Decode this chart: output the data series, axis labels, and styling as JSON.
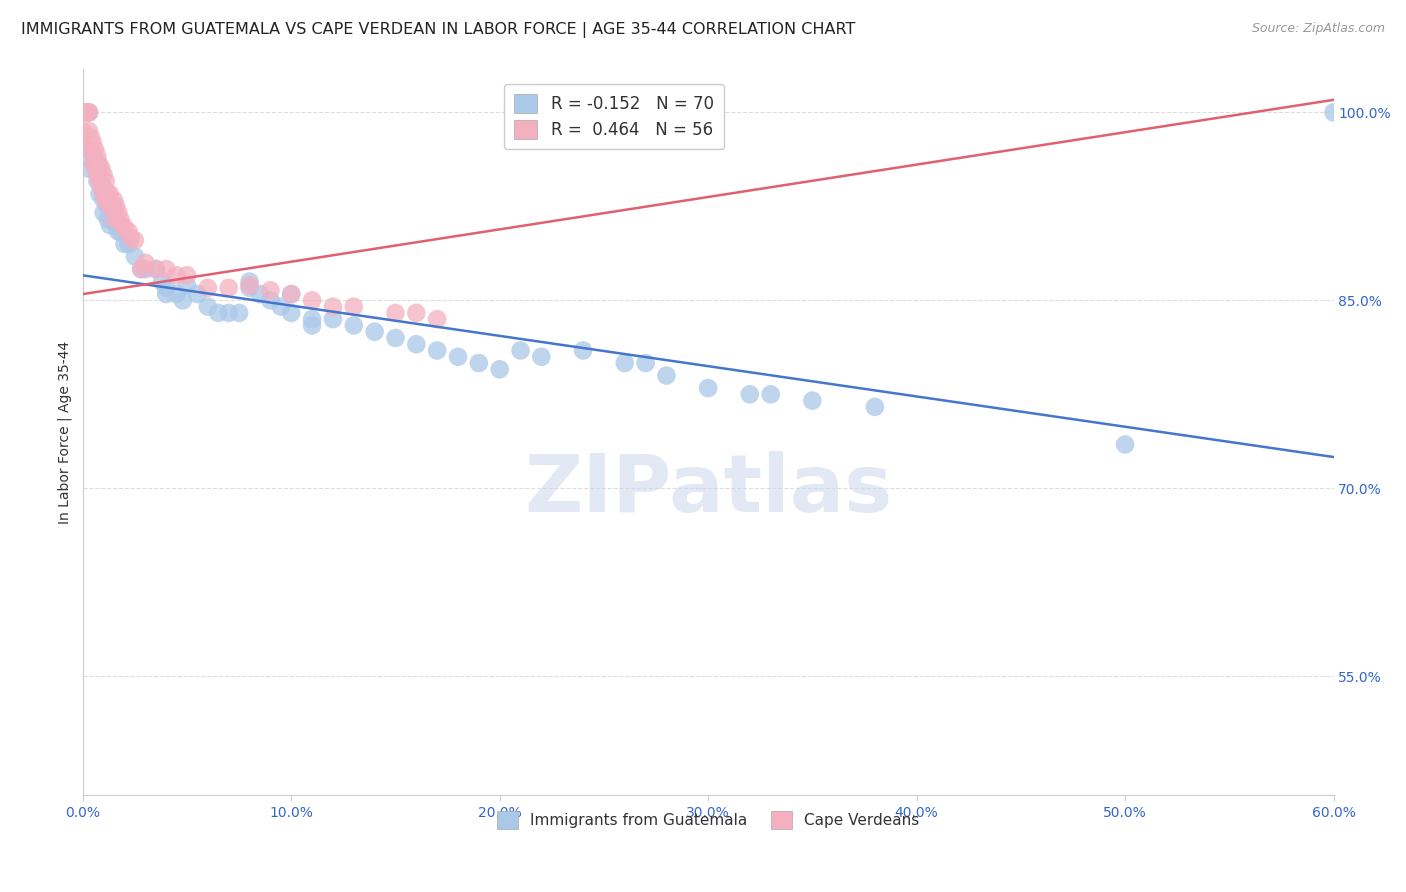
{
  "title": "IMMIGRANTS FROM GUATEMALA VS CAPE VERDEAN IN LABOR FORCE | AGE 35-44 CORRELATION CHART",
  "source": "Source: ZipAtlas.com",
  "ylabel": "In Labor Force | Age 35-44",
  "xlim": [
    0.0,
    0.6
  ],
  "ylim": [
    0.455,
    1.035
  ],
  "x_tick_vals": [
    0.0,
    0.1,
    0.2,
    0.3,
    0.4,
    0.5,
    0.6
  ],
  "x_tick_labels": [
    "0.0%",
    "10.0%",
    "20.0%",
    "30.0%",
    "40.0%",
    "50.0%",
    "60.0%"
  ],
  "y_tick_vals": [
    1.0,
    0.85,
    0.7,
    0.55
  ],
  "y_tick_labels": [
    "100.0%",
    "85.0%",
    "70.0%",
    "55.0%"
  ],
  "blue_line": [
    0.0,
    0.87,
    0.6,
    0.725
  ],
  "pink_line": [
    0.0,
    0.855,
    0.6,
    1.01
  ],
  "blue_color": "#aac8e8",
  "pink_color": "#f4b0c0",
  "blue_line_color": "#4477cc",
  "pink_line_color": "#e06070",
  "watermark": "ZIPatlas",
  "bg_color": "#ffffff",
  "grid_color": "#dddddd",
  "title_fontsize": 11.5,
  "source_fontsize": 9,
  "tick_fontsize": 10,
  "ylabel_fontsize": 10,
  "blue_scatter": [
    [
      0.003,
      1.0
    ],
    [
      0.08,
      0.865
    ],
    [
      0.003,
      0.97
    ],
    [
      0.003,
      0.955
    ],
    [
      0.005,
      0.965
    ],
    [
      0.005,
      0.96
    ],
    [
      0.007,
      0.955
    ],
    [
      0.007,
      0.96
    ],
    [
      0.007,
      0.945
    ],
    [
      0.008,
      0.935
    ],
    [
      0.01,
      0.94
    ],
    [
      0.01,
      0.93
    ],
    [
      0.01,
      0.92
    ],
    [
      0.012,
      0.925
    ],
    [
      0.012,
      0.915
    ],
    [
      0.013,
      0.91
    ],
    [
      0.015,
      0.925
    ],
    [
      0.015,
      0.915
    ],
    [
      0.016,
      0.91
    ],
    [
      0.017,
      0.905
    ],
    [
      0.018,
      0.905
    ],
    [
      0.02,
      0.895
    ],
    [
      0.022,
      0.895
    ],
    [
      0.025,
      0.885
    ],
    [
      0.028,
      0.875
    ],
    [
      0.03,
      0.875
    ],
    [
      0.035,
      0.875
    ],
    [
      0.038,
      0.865
    ],
    [
      0.04,
      0.86
    ],
    [
      0.04,
      0.855
    ],
    [
      0.045,
      0.855
    ],
    [
      0.048,
      0.85
    ],
    [
      0.05,
      0.862
    ],
    [
      0.055,
      0.855
    ],
    [
      0.06,
      0.845
    ],
    [
      0.065,
      0.84
    ],
    [
      0.07,
      0.84
    ],
    [
      0.075,
      0.84
    ],
    [
      0.08,
      0.86
    ],
    [
      0.085,
      0.855
    ],
    [
      0.09,
      0.85
    ],
    [
      0.095,
      0.845
    ],
    [
      0.1,
      0.855
    ],
    [
      0.1,
      0.84
    ],
    [
      0.11,
      0.835
    ],
    [
      0.11,
      0.83
    ],
    [
      0.12,
      0.835
    ],
    [
      0.13,
      0.83
    ],
    [
      0.14,
      0.825
    ],
    [
      0.15,
      0.82
    ],
    [
      0.16,
      0.815
    ],
    [
      0.17,
      0.81
    ],
    [
      0.18,
      0.805
    ],
    [
      0.19,
      0.8
    ],
    [
      0.2,
      0.795
    ],
    [
      0.21,
      0.81
    ],
    [
      0.22,
      0.805
    ],
    [
      0.24,
      0.81
    ],
    [
      0.26,
      0.8
    ],
    [
      0.27,
      0.8
    ],
    [
      0.28,
      0.79
    ],
    [
      0.3,
      0.78
    ],
    [
      0.32,
      0.775
    ],
    [
      0.33,
      0.775
    ],
    [
      0.35,
      0.77
    ],
    [
      0.38,
      0.765
    ],
    [
      0.5,
      0.735
    ],
    [
      0.6,
      1.0
    ]
  ],
  "pink_scatter": [
    [
      0.0,
      1.0
    ],
    [
      0.0,
      0.985
    ],
    [
      0.001,
      1.0
    ],
    [
      0.001,
      1.0
    ],
    [
      0.002,
      1.0
    ],
    [
      0.002,
      1.0
    ],
    [
      0.003,
      1.0
    ],
    [
      0.003,
      0.985
    ],
    [
      0.004,
      0.98
    ],
    [
      0.004,
      0.97
    ],
    [
      0.005,
      0.975
    ],
    [
      0.005,
      0.96
    ],
    [
      0.006,
      0.97
    ],
    [
      0.006,
      0.955
    ],
    [
      0.007,
      0.965
    ],
    [
      0.007,
      0.95
    ],
    [
      0.008,
      0.958
    ],
    [
      0.008,
      0.945
    ],
    [
      0.009,
      0.955
    ],
    [
      0.009,
      0.94
    ],
    [
      0.01,
      0.95
    ],
    [
      0.01,
      0.935
    ],
    [
      0.011,
      0.945
    ],
    [
      0.011,
      0.93
    ],
    [
      0.012,
      0.935
    ],
    [
      0.012,
      0.93
    ],
    [
      0.013,
      0.935
    ],
    [
      0.013,
      0.925
    ],
    [
      0.014,
      0.928
    ],
    [
      0.015,
      0.93
    ],
    [
      0.015,
      0.915
    ],
    [
      0.016,
      0.925
    ],
    [
      0.017,
      0.92
    ],
    [
      0.018,
      0.915
    ],
    [
      0.019,
      0.91
    ],
    [
      0.02,
      0.908
    ],
    [
      0.022,
      0.905
    ],
    [
      0.023,
      0.9
    ],
    [
      0.025,
      0.898
    ],
    [
      0.028,
      0.875
    ],
    [
      0.03,
      0.88
    ],
    [
      0.035,
      0.875
    ],
    [
      0.04,
      0.875
    ],
    [
      0.045,
      0.87
    ],
    [
      0.05,
      0.87
    ],
    [
      0.06,
      0.86
    ],
    [
      0.07,
      0.86
    ],
    [
      0.08,
      0.862
    ],
    [
      0.09,
      0.858
    ],
    [
      0.1,
      0.855
    ],
    [
      0.11,
      0.85
    ],
    [
      0.12,
      0.845
    ],
    [
      0.13,
      0.845
    ],
    [
      0.15,
      0.84
    ],
    [
      0.16,
      0.84
    ],
    [
      0.17,
      0.835
    ]
  ]
}
